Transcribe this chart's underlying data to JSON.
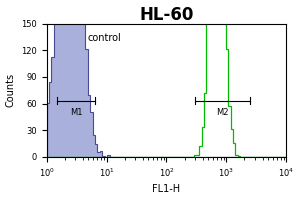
{
  "title": "HL-60",
  "xlabel": "FL1-H",
  "ylabel": "Counts",
  "xlim": [
    1.0,
    10000.0
  ],
  "ylim": [
    0,
    150
  ],
  "yticks": [
    0,
    30,
    60,
    90,
    120,
    150
  ],
  "control_label": "control",
  "m1_label": "M1",
  "m2_label": "M2",
  "blue_color": "#3a3a8c",
  "blue_fill": "#a0a8d8",
  "green_color": "#00bb00",
  "title_fontsize": 12,
  "axis_fontsize": 6,
  "label_fontsize": 7,
  "blue_log_mean": 0.38,
  "blue_log_std": 0.17,
  "blue_n": 5000,
  "green_log_mean": 2.845,
  "green_log_std": 0.1,
  "green_n": 3000,
  "m1_x1": 1.5,
  "m1_x2": 6.5,
  "m1_y": 63,
  "m2_x1": 300,
  "m2_x2": 2500,
  "m2_y": 63
}
